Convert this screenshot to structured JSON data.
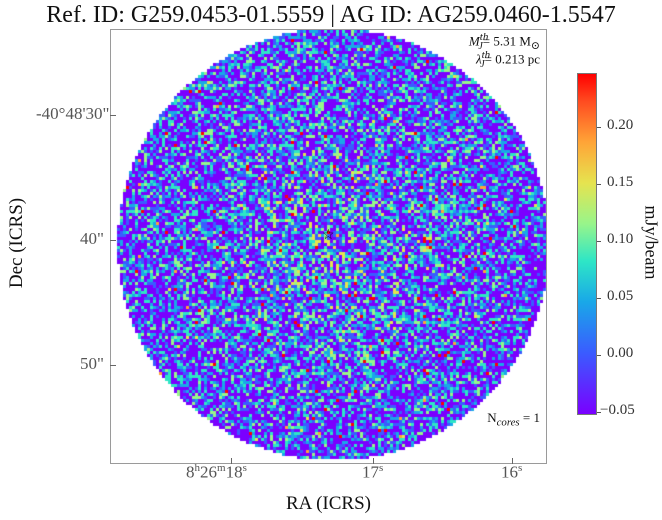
{
  "title": "Ref. ID: G259.0453-01.5559 | AG ID: AG259.0460-1.5547",
  "image": {
    "star_icon": "star-outline-icon",
    "annotation_mass_symbol": "M",
    "annotation_mass_sup": "th",
    "annotation_mass_sub": "J",
    "annotation_mass_value": "= 5.31 M",
    "annotation_mass_unit_sub": "⊙",
    "annotation_lambda_symbol": "λ",
    "annotation_lambda_sup": "th",
    "annotation_lambda_sub": "J",
    "annotation_lambda_value": "= 0.213 pc",
    "ncores_prefix": "N",
    "ncores_sub": "cores",
    "ncores_value": " = 1"
  },
  "axes": {
    "x_title": "RA (ICRS)",
    "y_title": "Dec (ICRS)",
    "x_ticks": [
      {
        "h": "8",
        "hu": "h",
        "m": "26",
        "mu": "m",
        "s": "18",
        "su": "s"
      },
      {
        "h": "",
        "hu": "",
        "m": "",
        "mu": "",
        "s": "17",
        "su": "s"
      },
      {
        "h": "",
        "hu": "",
        "m": "",
        "mu": "",
        "s": "16",
        "su": "s"
      }
    ],
    "y_ticks": [
      "-40°48'30\"",
      "40\"",
      "50\""
    ]
  },
  "colorbar": {
    "label": "mJy/beam",
    "ticks": [
      "0.20",
      "0.15",
      "0.10",
      "0.05",
      "0.00",
      "−0.05"
    ],
    "colors": [
      "#7a00ff",
      "#3a5cff",
      "#19a8e8",
      "#2ee6c6",
      "#98f58a",
      "#e6e34f",
      "#ffa437",
      "#ff0000"
    ]
  }
}
